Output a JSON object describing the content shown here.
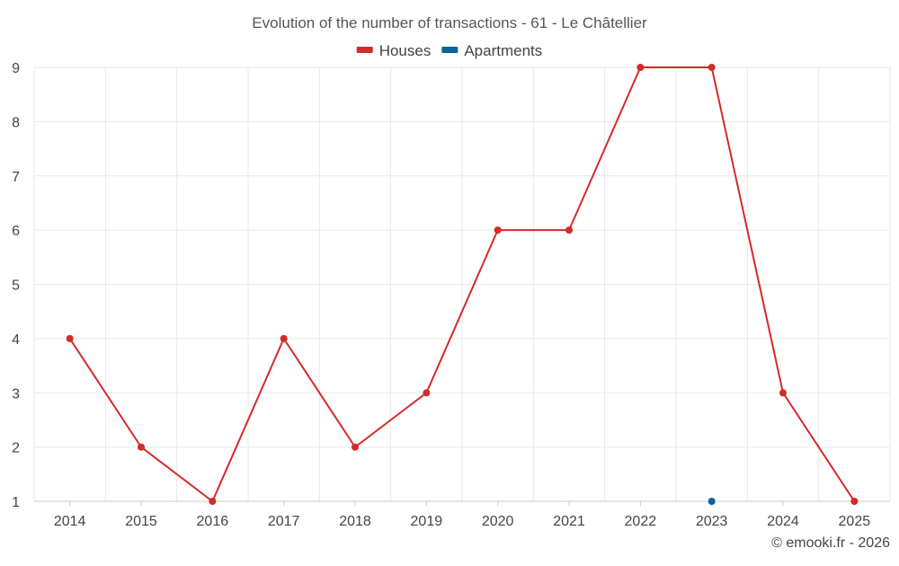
{
  "chart_data": {
    "type": "line",
    "title": "Evolution of the number of transactions - 61 - Le Châtellier",
    "xlabel": "",
    "ylabel": "",
    "categories": [
      "2014",
      "2015",
      "2016",
      "2017",
      "2018",
      "2019",
      "2020",
      "2021",
      "2022",
      "2023",
      "2024",
      "2025"
    ],
    "ylim": [
      1,
      9
    ],
    "yticks": [
      1,
      2,
      3,
      4,
      5,
      6,
      7,
      8,
      9
    ],
    "grid": true,
    "legend_position": "top-center",
    "series": [
      {
        "name": "Houses",
        "color": "#d32a2a",
        "values": [
          4,
          2,
          1,
          4,
          2,
          3,
          6,
          6,
          9,
          9,
          3,
          1
        ]
      },
      {
        "name": "Apartments",
        "color": "#0d6496",
        "values": [
          null,
          null,
          null,
          null,
          null,
          null,
          null,
          null,
          null,
          1,
          null,
          null
        ]
      }
    ]
  },
  "credit": "© emooki.fr - 2026"
}
